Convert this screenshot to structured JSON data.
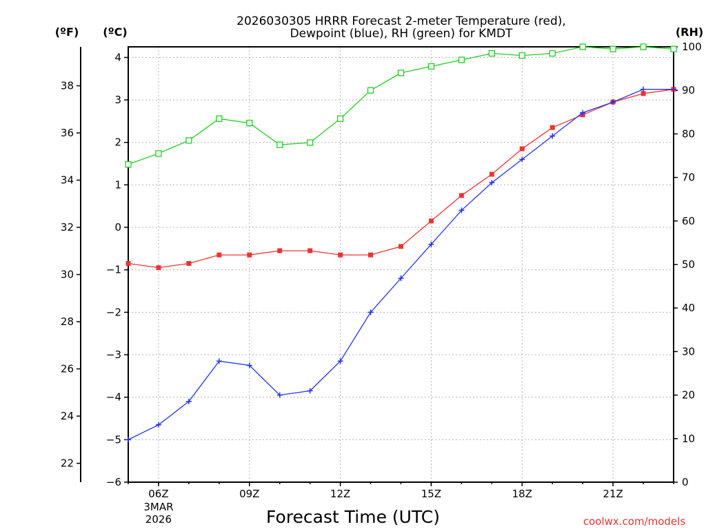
{
  "chart_data": {
    "type": "line",
    "title": "2026030305 HRRR Forecast 2-meter Temperature (red),",
    "title_line2": "Dewpoint (blue), RH (green) for KMDT",
    "xlabel": "Forecast Time (UTC)",
    "credit": "coolwx.com/models",
    "units": {
      "fahrenheit": "(ºF)",
      "celsius": "(ºC)",
      "rh": "(RH)"
    },
    "x_hours": [
      5,
      6,
      7,
      8,
      9,
      10,
      11,
      12,
      13,
      14,
      15,
      16,
      17,
      18,
      19,
      20,
      21,
      22,
      23
    ],
    "xlim": [
      5,
      23
    ],
    "x_ticks": [
      {
        "hour": 6,
        "label": "06Z"
      },
      {
        "hour": 9,
        "label": "09Z"
      },
      {
        "hour": 12,
        "label": "12Z"
      },
      {
        "hour": 15,
        "label": "15Z"
      },
      {
        "hour": 18,
        "label": "18Z"
      },
      {
        "hour": 21,
        "label": "21Z"
      }
    ],
    "x_date_label": {
      "hour": 6,
      "line1": "3MAR",
      "line2": "2026"
    },
    "celsius_axis": {
      "range": [
        -6,
        4.25
      ],
      "ticks": [
        "−6",
        "−5",
        "−4",
        "−3",
        "−2",
        "−1",
        "0",
        "1",
        "2",
        "3",
        "4"
      ],
      "tick_values": [
        -6,
        -5,
        -4,
        -3,
        -2,
        -1,
        0,
        1,
        2,
        3,
        4
      ]
    },
    "fahrenheit_axis": {
      "ticks": [
        "22",
        "24",
        "26",
        "28",
        "30",
        "32",
        "34",
        "36",
        "38"
      ],
      "tick_values": [
        22,
        24,
        26,
        28,
        30,
        32,
        34,
        36,
        38
      ]
    },
    "rh_axis": {
      "range": [
        0,
        100
      ],
      "ticks": [
        "0",
        "10",
        "20",
        "30",
        "40",
        "50",
        "60",
        "70",
        "80",
        "90",
        "100"
      ],
      "tick_values": [
        0,
        10,
        20,
        30,
        40,
        50,
        60,
        70,
        80,
        90,
        100
      ]
    },
    "series": [
      {
        "name": "2-meter Temperature",
        "axis": "celsius",
        "color": "#ee3333",
        "marker": "filled-square",
        "values": [
          -0.85,
          -0.95,
          -0.85,
          -0.65,
          -0.65,
          -0.55,
          -0.55,
          -0.65,
          -0.65,
          -0.45,
          0.15,
          0.75,
          1.25,
          1.85,
          2.35,
          2.65,
          2.95,
          3.15,
          3.25
        ]
      },
      {
        "name": "Dewpoint",
        "axis": "celsius",
        "color": "#2233ee",
        "marker": "plus",
        "values": [
          -5.0,
          -4.65,
          -4.1,
          -3.15,
          -3.25,
          -3.95,
          -3.85,
          -3.15,
          -2.0,
          -1.2,
          -0.4,
          0.4,
          1.05,
          1.6,
          2.15,
          2.7,
          2.95,
          3.25,
          3.25
        ]
      },
      {
        "name": "Relative Humidity",
        "axis": "rh",
        "color": "#22cc22",
        "marker": "open-square",
        "values": [
          73,
          75.5,
          78.5,
          83.5,
          82.5,
          77.5,
          78,
          83.5,
          90,
          94,
          95.5,
          97,
          98.5,
          98,
          98.5,
          100,
          99.5,
          100,
          99.5
        ]
      }
    ]
  }
}
